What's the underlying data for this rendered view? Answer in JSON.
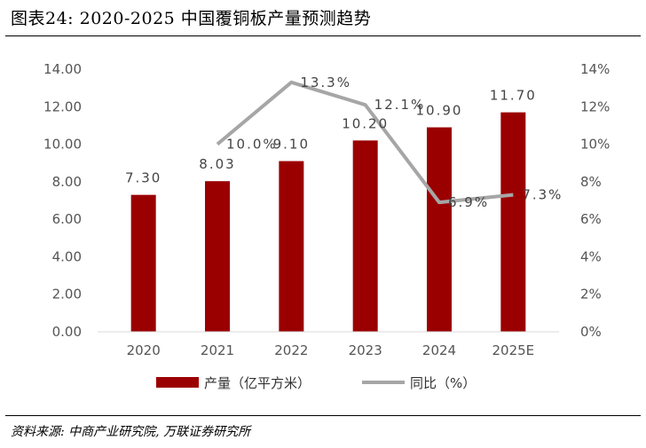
{
  "figure": {
    "title": "图表24:  2020-2025 中国覆铜板产量预测趋势",
    "source": "资料来源:  中商产业研究院,  万联证券研究所"
  },
  "colors": {
    "bar": "#9b0000",
    "line": "#a6a6a6",
    "tick": "#595959"
  },
  "chart_data": {
    "type": "bar",
    "categories": [
      "2020",
      "2021",
      "2022",
      "2023",
      "2024",
      "2025E"
    ],
    "series": [
      {
        "name": "产量（亿平方米）",
        "type": "bar",
        "axis": "left",
        "values": [
          7.3,
          8.03,
          9.1,
          10.2,
          10.9,
          11.7
        ],
        "labels": [
          "7.30",
          "8.03",
          "9.10",
          "10.20",
          "10.90",
          "11.70"
        ]
      },
      {
        "name": "同比（%）",
        "type": "line",
        "axis": "right",
        "values": [
          null,
          10.0,
          13.3,
          12.1,
          6.9,
          7.3
        ],
        "labels": [
          "",
          "10.0%",
          "13.3%",
          "12.1%",
          "6.9%",
          "7.3%"
        ]
      }
    ],
    "y_left": {
      "min": 0,
      "max": 14,
      "step": 2,
      "tick_labels": [
        "0.00",
        "2.00",
        "4.00",
        "6.00",
        "8.00",
        "10.00",
        "12.00",
        "14.00"
      ]
    },
    "y_right": {
      "min": 0,
      "max": 14,
      "step": 2,
      "tick_labels": [
        "0%",
        "2%",
        "4%",
        "6%",
        "8%",
        "10%",
        "12%",
        "14%"
      ]
    },
    "grid": false,
    "legend": "bottom"
  }
}
